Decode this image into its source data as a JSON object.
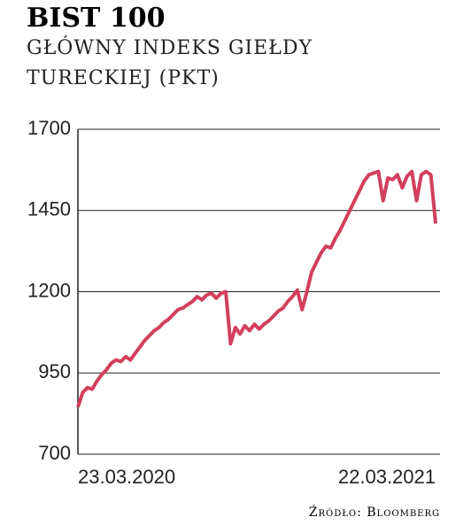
{
  "chart_data": {
    "type": "line",
    "title": "BIST 100",
    "subtitle": "GŁÓWNY INDEKS GIEŁDY TURECKIEJ (PKT)",
    "source": "Źródło: Bloomberg",
    "categories": [
      "23.03.2020",
      null,
      null,
      null,
      null,
      null,
      null,
      null,
      null,
      null,
      null,
      null,
      null,
      null,
      null,
      null,
      null,
      null,
      null,
      null,
      null,
      null,
      null,
      null,
      null,
      null,
      null,
      null,
      null,
      null,
      null,
      null,
      null,
      null,
      null,
      null,
      null,
      null,
      null,
      null,
      null,
      null,
      null,
      null,
      null,
      null,
      null,
      null,
      null,
      null,
      null,
      null,
      null,
      null,
      null,
      null,
      null,
      null,
      null,
      null,
      null,
      null,
      null,
      null,
      null,
      null,
      null,
      null,
      null,
      null,
      null,
      null,
      null,
      null,
      null,
      "22.03.2021"
    ],
    "series": [
      {
        "name": "BIST 100",
        "color": "#d23f5c",
        "values": [
          845,
          890,
          905,
          900,
          925,
          945,
          960,
          980,
          990,
          985,
          1000,
          990,
          1010,
          1030,
          1050,
          1065,
          1080,
          1090,
          1105,
          1115,
          1130,
          1145,
          1150,
          1160,
          1170,
          1185,
          1175,
          1190,
          1195,
          1180,
          1195,
          1200,
          1040,
          1090,
          1070,
          1095,
          1080,
          1100,
          1085,
          1100,
          1110,
          1125,
          1140,
          1150,
          1170,
          1185,
          1205,
          1145,
          1200,
          1260,
          1290,
          1320,
          1340,
          1335,
          1365,
          1390,
          1420,
          1450,
          1480,
          1510,
          1540,
          1560,
          1565,
          1570,
          1480,
          1550,
          1545,
          1560,
          1520,
          1555,
          1570,
          1480,
          1560,
          1570,
          1560,
          1410
        ]
      }
    ],
    "ylim": [
      700,
      1700
    ],
    "yticks": [
      700,
      950,
      1200,
      1450,
      1700
    ],
    "grid": true
  }
}
